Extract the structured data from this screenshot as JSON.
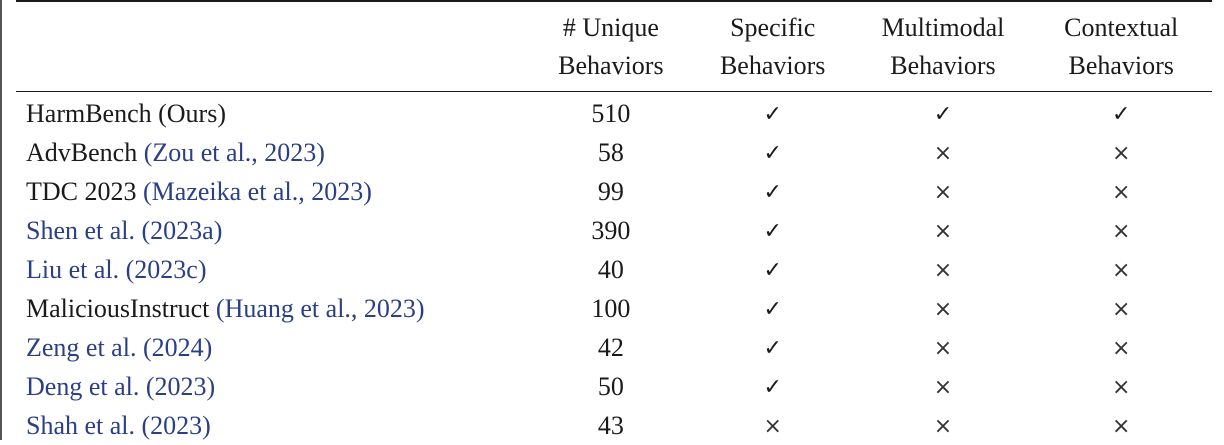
{
  "table": {
    "headers": [
      [
        "",
        ""
      ],
      [
        "# Unique",
        "Behaviors"
      ],
      [
        "Specific",
        "Behaviors"
      ],
      [
        "Multimodal",
        "Behaviors"
      ],
      [
        "Contextual",
        "Behaviors"
      ]
    ],
    "rows": [
      {
        "name": "HarmBench (Ours)",
        "cite": "",
        "unique": "510",
        "specific": "✓",
        "multimodal": "✓",
        "contextual": "✓"
      },
      {
        "name": "AdvBench ",
        "cite": "(Zou et al., 2023)",
        "unique": "58",
        "specific": "✓",
        "multimodal": "×",
        "contextual": "×"
      },
      {
        "name": "TDC 2023 ",
        "cite": "(Mazeika et al., 2023)",
        "unique": "99",
        "specific": "✓",
        "multimodal": "×",
        "contextual": "×"
      },
      {
        "name": "",
        "cite": "Shen et al. (2023a)",
        "unique": "390",
        "specific": "✓",
        "multimodal": "×",
        "contextual": "×"
      },
      {
        "name": "",
        "cite": "Liu et al. (2023c)",
        "unique": "40",
        "specific": "✓",
        "multimodal": "×",
        "contextual": "×"
      },
      {
        "name": "MaliciousInstruct ",
        "cite": "(Huang et al., 2023)",
        "unique": "100",
        "specific": "✓",
        "multimodal": "×",
        "contextual": "×"
      },
      {
        "name": "",
        "cite": "Zeng et al. (2024)",
        "unique": "42",
        "specific": "✓",
        "multimodal": "×",
        "contextual": "×"
      },
      {
        "name": "",
        "cite": "Deng et al. (2023)",
        "unique": "50",
        "specific": "✓",
        "multimodal": "×",
        "contextual": "×"
      },
      {
        "name": "",
        "cite": "Shah et al. (2023)",
        "unique": "43",
        "specific": "×",
        "multimodal": "×",
        "contextual": "×"
      }
    ]
  }
}
